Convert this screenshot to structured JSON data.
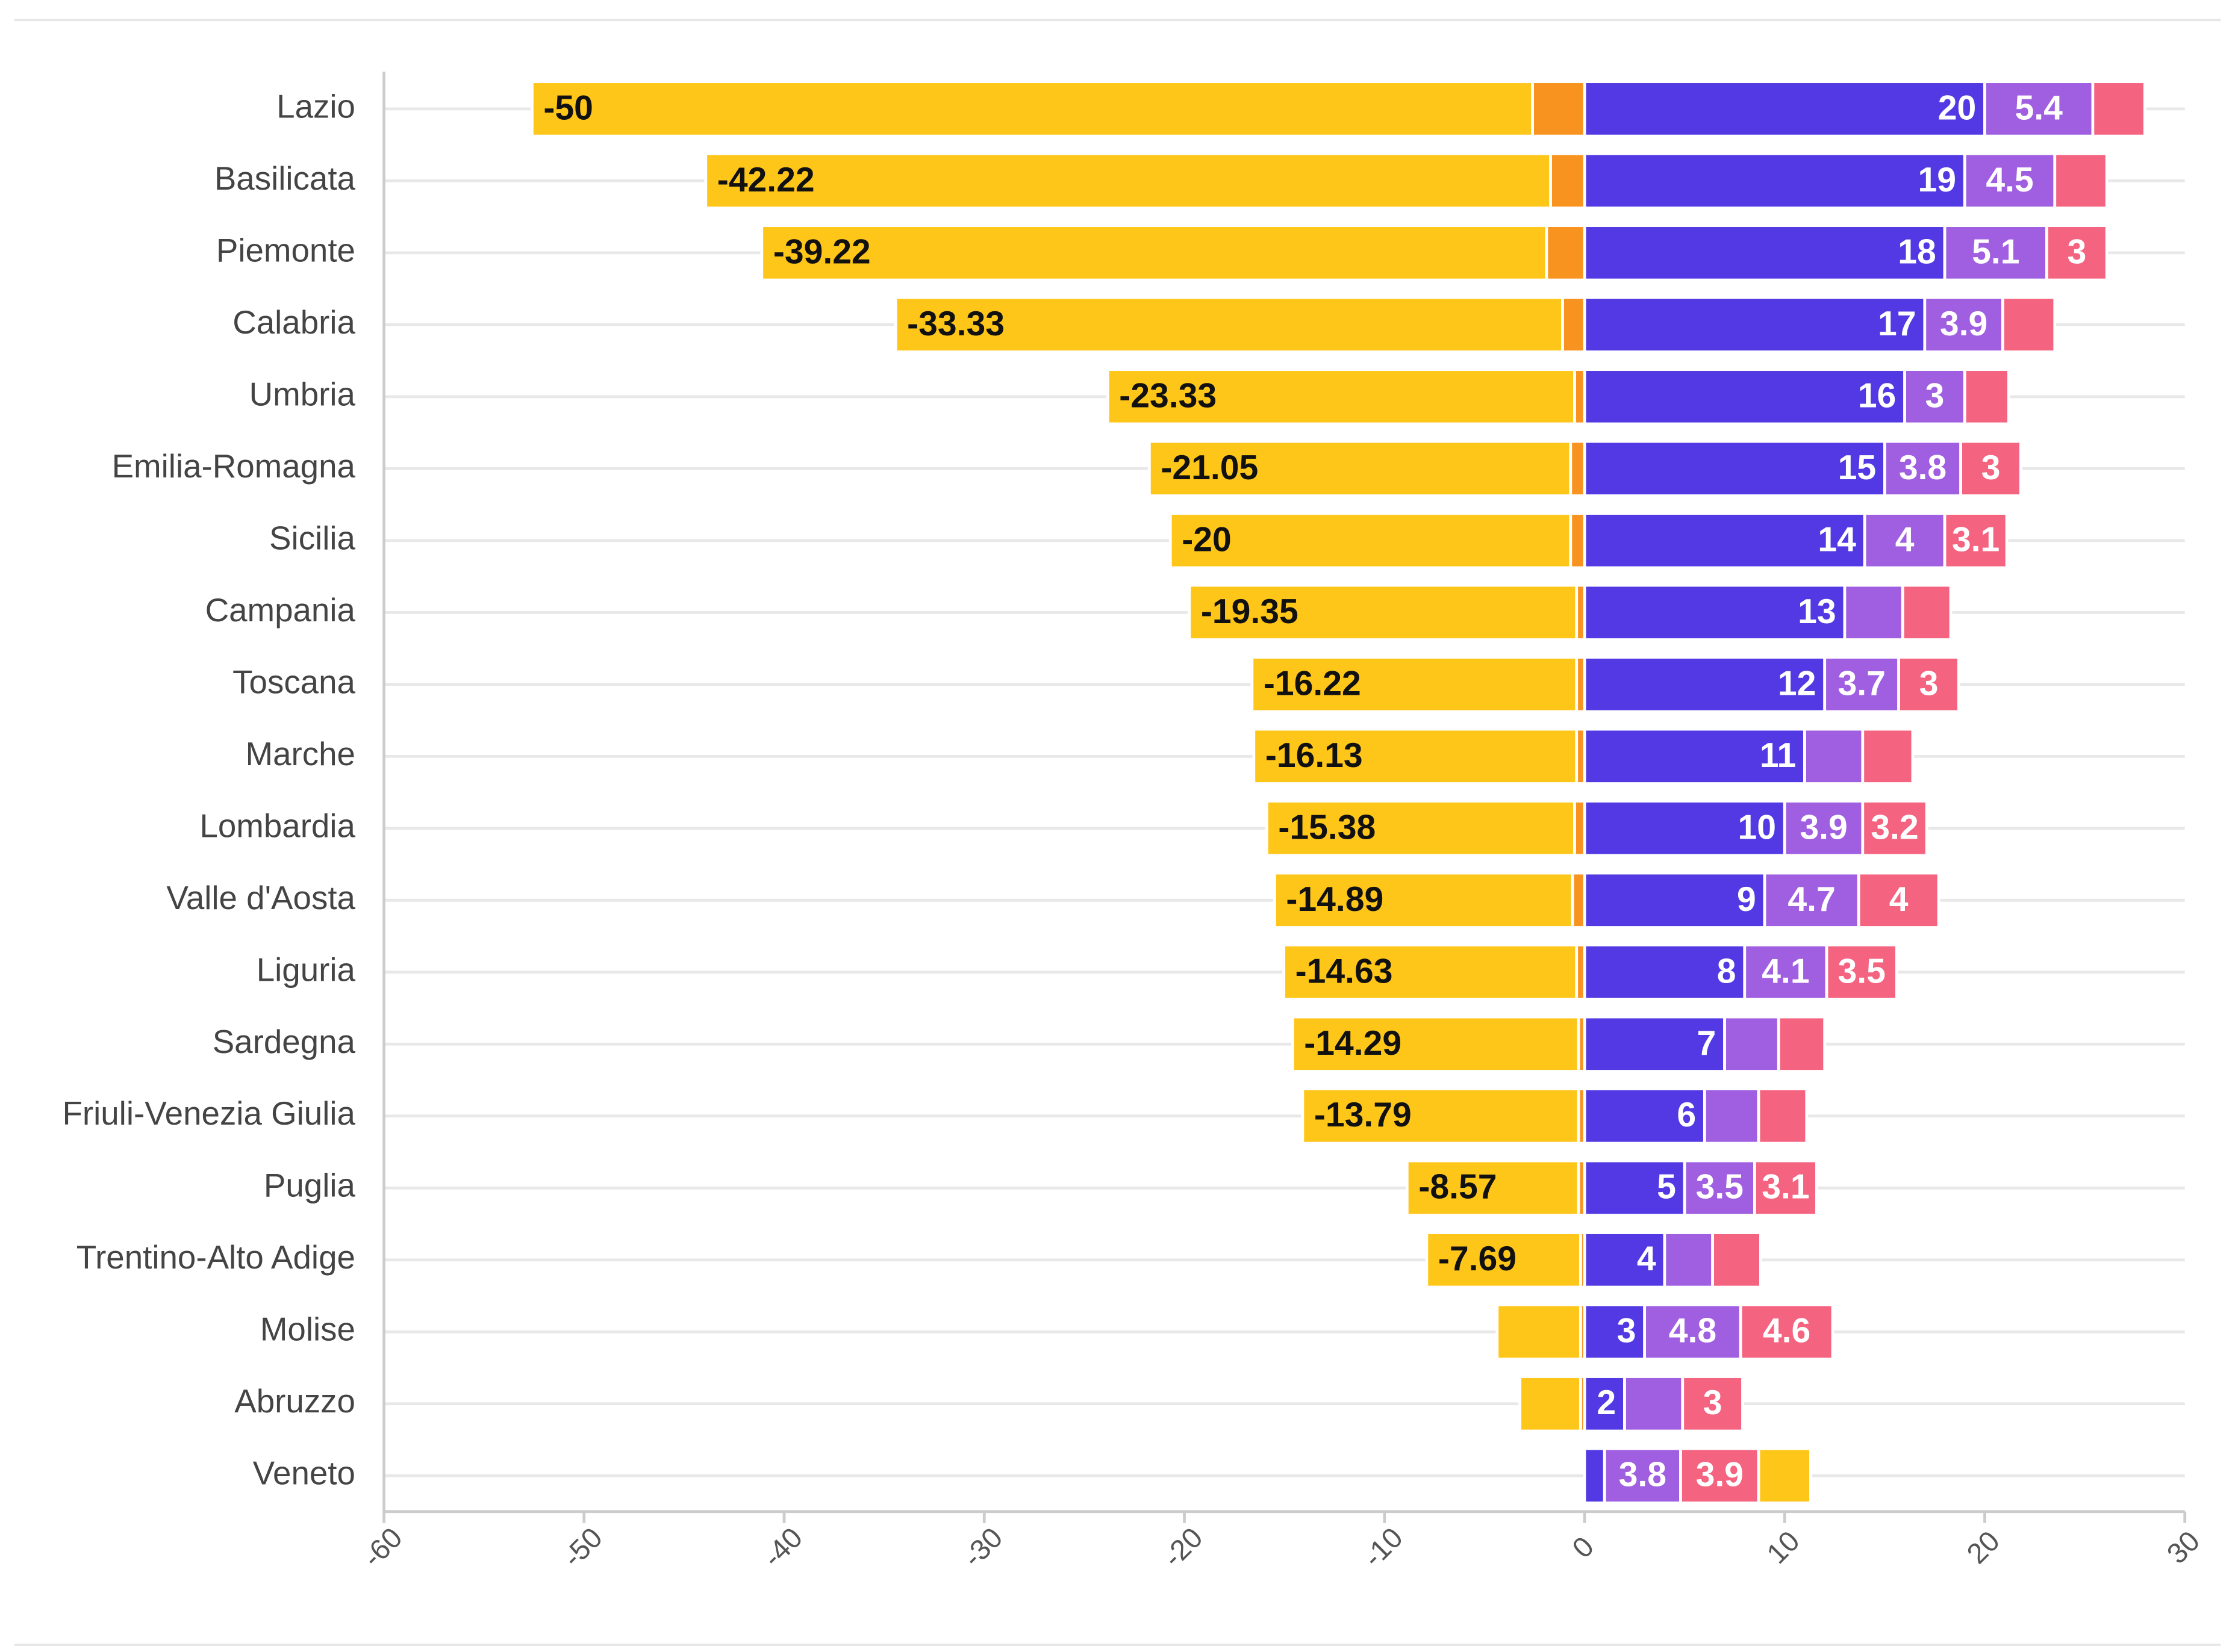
{
  "chart_data": {
    "type": "diverging-stacked-bar",
    "categories": [
      "Lazio",
      "Basilicata",
      "Piemonte",
      "Calabria",
      "Umbria",
      "Emilia-Romagna",
      "Sicilia",
      "Campania",
      "Toscana",
      "Marche",
      "Lombardia",
      "Valle d'Aosta",
      "Liguria",
      "Sardegna",
      "Friuli-Venezia Giulia",
      "Puglia",
      "Trentino-Alto Adige",
      "Molise",
      "Abruzzo",
      "Veneto"
    ],
    "series": [
      {
        "color": "#5239e3",
        "values": [
          20,
          19,
          18,
          17,
          16,
          15,
          14,
          13,
          12,
          11,
          10,
          9,
          8,
          7,
          6,
          5,
          4,
          3,
          2,
          1
        ]
      },
      {
        "color": "#a05ee0",
        "values": [
          5.4,
          4.5,
          5.1,
          3.9,
          3,
          3.8,
          4,
          2.9,
          3.7,
          2.9,
          3.9,
          4.7,
          4.1,
          2.7,
          2.7,
          3.5,
          2.4,
          4.8,
          2.9,
          3.8
        ]
      },
      {
        "color": "#f4637f",
        "values": [
          2.6,
          2.6,
          3.0,
          2.6,
          2.2,
          3,
          3.1,
          2.4,
          3.0,
          2.5,
          3.2,
          4,
          3.5,
          2.3,
          2.4,
          3.1,
          2.4,
          4.6,
          3,
          3.9
        ]
      },
      {
        "color": "#f7931e",
        "values": [
          -2.6,
          -1.7,
          -1.9,
          -1.1,
          -0.5,
          -0.7,
          -0.7,
          -0.4,
          -0.4,
          -0.4,
          -0.5,
          -0.6,
          -0.4,
          -0.3,
          -0.3,
          -0.3,
          -0.2,
          -0.2,
          -0.2,
          0
        ]
      },
      {
        "color": "#ffc61a",
        "values": [
          -50,
          -42.22,
          -39.22,
          -33.33,
          -23.33,
          -21.05,
          -20,
          -19.35,
          -16.22,
          -16.13,
          -15.38,
          -14.89,
          -14.63,
          -14.29,
          -13.79,
          -8.57,
          -7.69,
          -4.17,
          -3.03,
          2.6
        ]
      }
    ],
    "xlim": [
      -60,
      30
    ],
    "xticks": [
      -60,
      -50,
      -40,
      -30,
      -20,
      -10,
      0,
      10,
      20,
      30
    ],
    "grid": true
  }
}
